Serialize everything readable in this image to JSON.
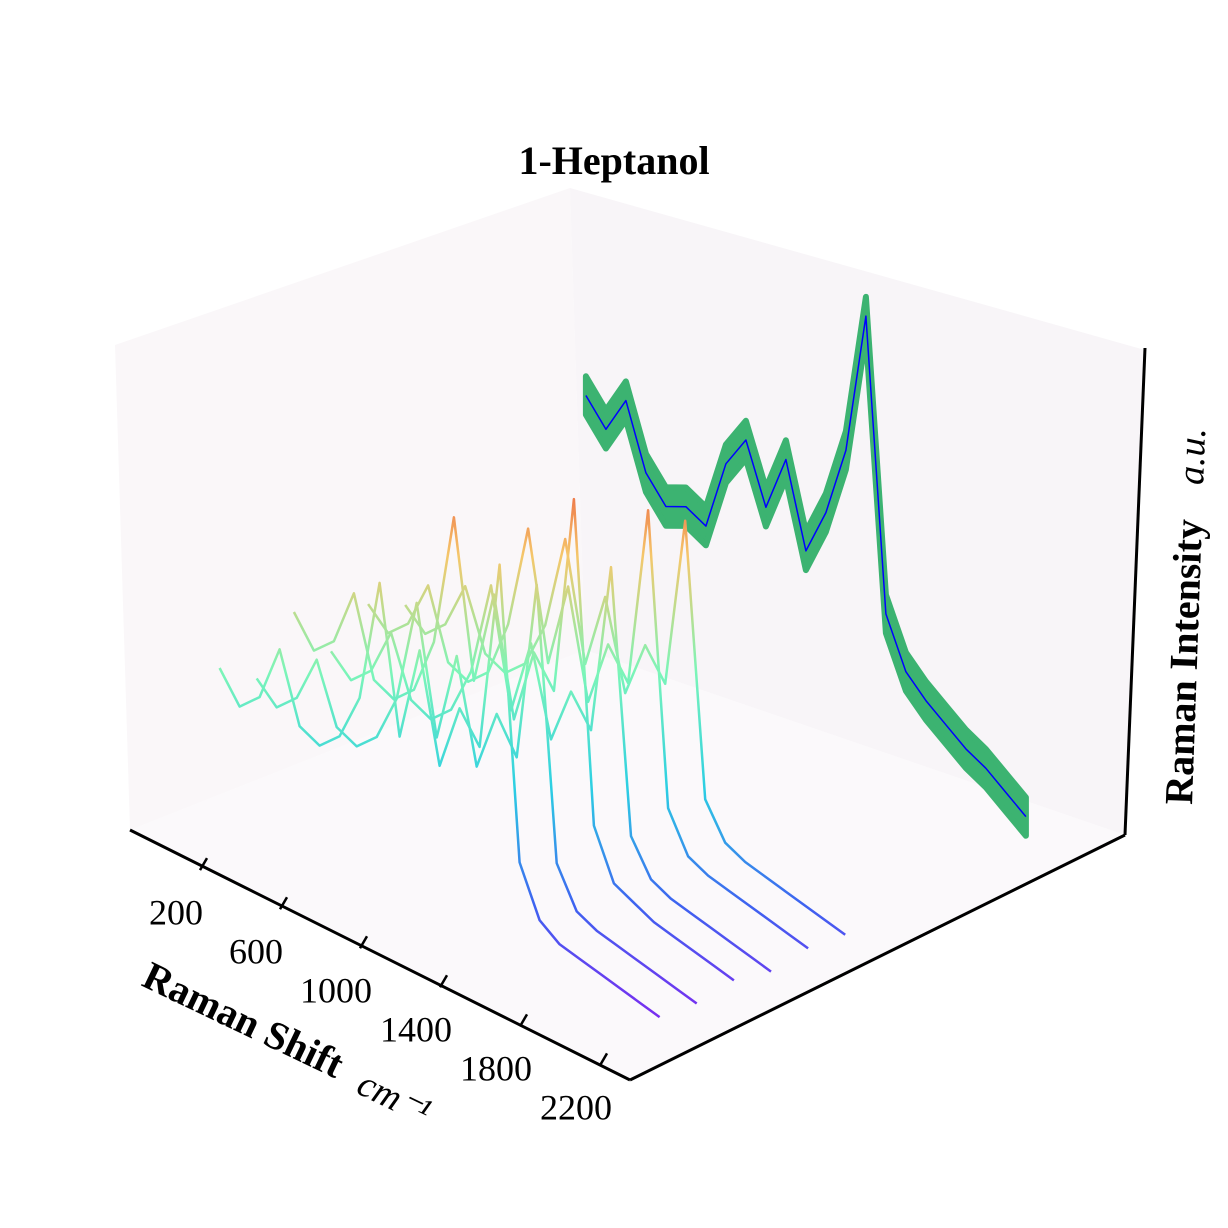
{
  "chart_data": {
    "type": "waterfall3d",
    "title": "1-Heptanol",
    "xlabel": "Raman Shift",
    "xlabel_unit": "cm⁻¹",
    "zlabel": "Raman Intensity",
    "zlabel_unit": "a.u.",
    "xlim": [
      -150,
      2350
    ],
    "xticks": [
      200,
      600,
      1000,
      1400,
      1800,
      2200
    ],
    "zlim": [
      0,
      1
    ],
    "colormap": [
      "#7b2cf0",
      "#3d63f0",
      "#2ccfe3",
      "#7cf5b8",
      "#f5c76b",
      "#e8312a"
    ],
    "x": [
      100,
      200,
      300,
      400,
      500,
      600,
      700,
      800,
      900,
      1000,
      1100,
      1200,
      1300,
      1400,
      1500,
      1600,
      1700,
      1800,
      1900,
      2000,
      2100,
      2200,
      2300
    ],
    "series": [
      {
        "values": [
          0.36,
          0.3,
          0.34,
          0.46,
          0.32,
          0.3,
          0.34,
          0.44,
          0.7,
          0.4,
          0.6,
          0.38,
          0.52,
          0.46,
          0.86,
          0.26,
          0.16,
          0.13,
          0.12,
          0.11,
          0.1,
          0.09,
          0.08
        ]
      },
      {
        "values": [
          0.3,
          0.26,
          0.3,
          0.4,
          0.28,
          0.26,
          0.3,
          0.4,
          0.62,
          0.36,
          0.55,
          0.34,
          0.47,
          0.4,
          0.78,
          0.22,
          0.14,
          0.12,
          0.11,
          0.1,
          0.09,
          0.08,
          0.07
        ]
      },
      {
        "values": [
          0.4,
          0.34,
          0.38,
          0.5,
          0.34,
          0.32,
          0.36,
          0.48,
          0.76,
          0.44,
          0.64,
          0.4,
          0.56,
          0.5,
          0.92,
          0.26,
          0.16,
          0.14,
          0.12,
          0.11,
          0.1,
          0.09,
          0.08
        ]
      },
      {
        "values": [
          0.28,
          0.24,
          0.28,
          0.38,
          0.26,
          0.24,
          0.28,
          0.38,
          0.58,
          0.34,
          0.5,
          0.32,
          0.44,
          0.38,
          0.74,
          0.2,
          0.13,
          0.11,
          0.1,
          0.09,
          0.08,
          0.07,
          0.06
        ]
      },
      {
        "values": [
          0.34,
          0.3,
          0.34,
          0.44,
          0.3,
          0.28,
          0.32,
          0.44,
          0.66,
          0.4,
          0.58,
          0.36,
          0.5,
          0.44,
          0.82,
          0.22,
          0.14,
          0.12,
          0.11,
          0.1,
          0.09,
          0.08,
          0.07
        ]
      },
      {
        "values": [
          0.3,
          0.26,
          0.3,
          0.4,
          0.28,
          0.26,
          0.3,
          0.4,
          0.6,
          0.36,
          0.52,
          0.34,
          0.46,
          0.4,
          0.76,
          0.2,
          0.13,
          0.11,
          0.1,
          0.09,
          0.08,
          0.07,
          0.06
        ]
      },
      {
        "color": "#0000ff",
        "band_color": "#3cb371",
        "values": [
          0.55,
          0.5,
          0.58,
          0.45,
          0.4,
          0.42,
          0.4,
          0.55,
          0.62,
          0.5,
          0.62,
          0.45,
          0.55,
          0.7,
          1.0,
          0.4,
          0.3,
          0.26,
          0.23,
          0.2,
          0.18,
          0.15,
          0.12
        ],
        "spread": [
          0.04,
          0.04,
          0.04,
          0.04,
          0.04,
          0.04,
          0.04,
          0.04,
          0.04,
          0.04,
          0.04,
          0.04,
          0.04,
          0.04,
          0.04,
          0.04,
          0.04,
          0.04,
          0.04,
          0.04,
          0.04,
          0.04,
          0.04
        ]
      }
    ]
  }
}
